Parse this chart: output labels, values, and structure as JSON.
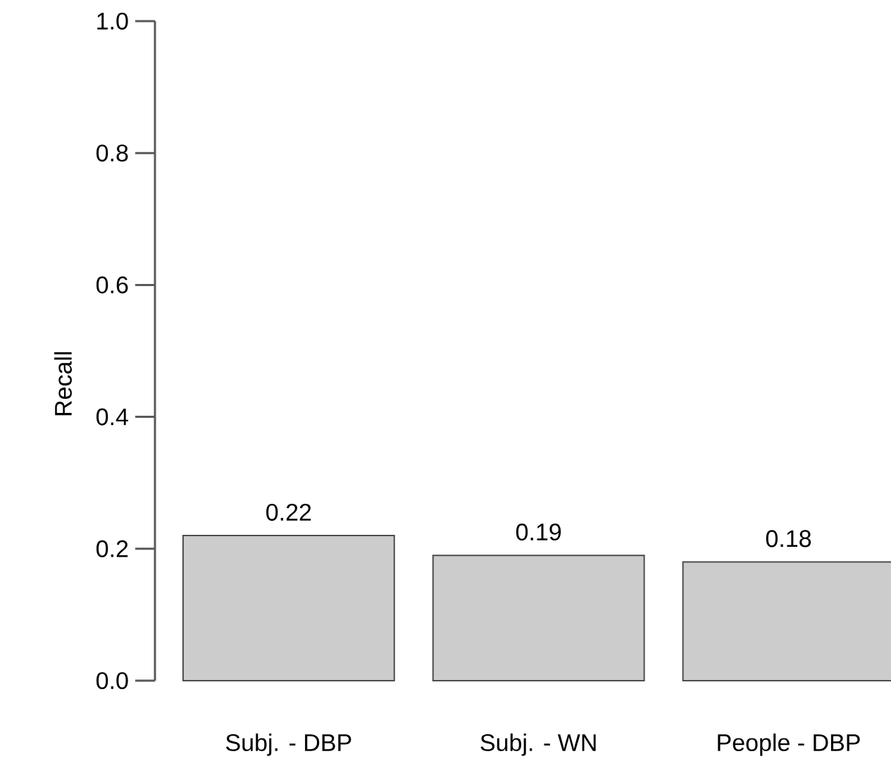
{
  "chart_data": {
    "type": "bar",
    "ylabel": "Recall",
    "categories": [
      "Subj. - DBP",
      "Subj. - WN",
      "People - DBP"
    ],
    "values": [
      0.22,
      0.19,
      0.18
    ],
    "color": "#cccccc",
    "ylim": [
      0,
      1
    ],
    "yticks": [
      {
        "value": 0,
        "label": "0.0"
      },
      0.2,
      0.4,
      0.6,
      0.8,
      {
        "value": 1,
        "label": "1.0"
      }
    ],
    "data_labels": true
  }
}
